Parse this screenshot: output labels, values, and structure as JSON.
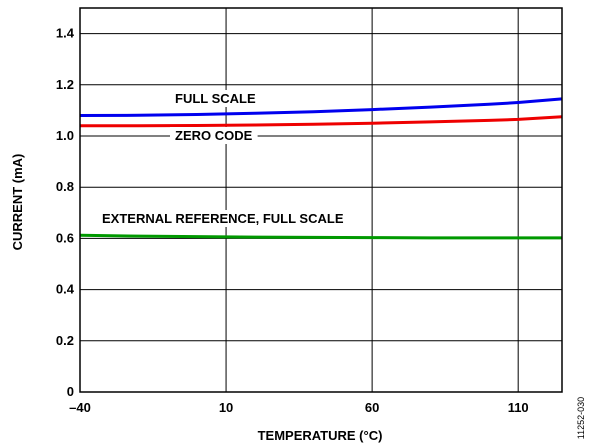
{
  "chart_data": {
    "type": "line",
    "xlabel": "TEMPERATURE (°C)",
    "ylabel": "CURRENT (mA)",
    "xlim": [
      -40,
      125
    ],
    "ylim": [
      0,
      1.5
    ],
    "x_ticks": [
      -40,
      10,
      60,
      110
    ],
    "x_tick_labels": [
      "–40",
      "10",
      "60",
      "110"
    ],
    "y_ticks": [
      0,
      0.2,
      0.4,
      0.6,
      0.8,
      1.0,
      1.2,
      1.4
    ],
    "y_tick_labels": [
      "0",
      "0.2",
      "0.4",
      "0.6",
      "0.8",
      "1.0",
      "1.2",
      "1.4"
    ],
    "grid": true,
    "series": [
      {
        "name": "FULL SCALE",
        "color": "#0000ee",
        "x": [
          -40,
          -20,
          0,
          20,
          40,
          60,
          80,
          100,
          110,
          125
        ],
        "y": [
          1.08,
          1.081,
          1.084,
          1.089,
          1.095,
          1.103,
          1.113,
          1.124,
          1.131,
          1.145
        ]
      },
      {
        "name": "ZERO CODE",
        "color": "#ee0000",
        "x": [
          -40,
          -20,
          0,
          20,
          40,
          60,
          80,
          100,
          110,
          125
        ],
        "y": [
          1.04,
          1.04,
          1.041,
          1.043,
          1.046,
          1.05,
          1.055,
          1.061,
          1.065,
          1.075
        ]
      },
      {
        "name": "EXTERNAL REFERENCE, FULL SCALE",
        "color": "#009900",
        "x": [
          -40,
          -20,
          0,
          20,
          40,
          60,
          80,
          100,
          110,
          125
        ],
        "y": [
          0.612,
          0.609,
          0.607,
          0.605,
          0.604,
          0.603,
          0.602,
          0.602,
          0.602,
          0.602
        ]
      }
    ],
    "annotations": [
      {
        "text": "FULL SCALE",
        "series": 0
      },
      {
        "text": "ZERO CODE",
        "series": 1
      },
      {
        "text": "EXTERNAL REFERENCE, FULL SCALE",
        "series": 2
      }
    ],
    "figure_id": "11252-030"
  }
}
